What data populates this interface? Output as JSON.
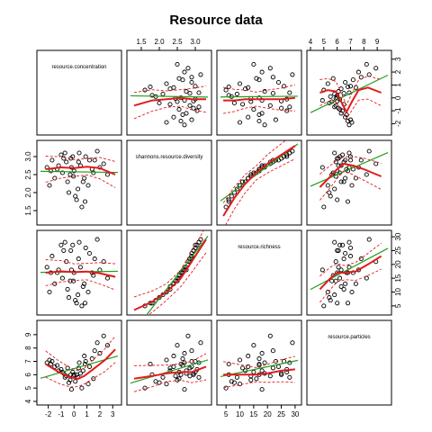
{
  "chart_data": {
    "type": "scatter",
    "title": "Resource data",
    "variables": [
      "resource.concentration",
      "shannons.resource.diversity",
      "resource.richness",
      "resource.particles"
    ],
    "ranges": [
      [
        -2.6,
        3.4
      ],
      [
        1.2,
        3.35
      ],
      [
        3,
        31
      ],
      [
        4,
        9.8
      ]
    ],
    "ticks": [
      [
        -2,
        -1,
        0,
        1,
        2,
        3
      ],
      [
        1.5,
        2.0,
        2.5,
        3.0
      ],
      [
        5,
        10,
        15,
        20,
        25,
        30
      ],
      [
        4,
        5,
        6,
        7,
        8,
        9
      ]
    ],
    "tick_labels": [
      [
        "-2",
        "-1",
        "0",
        "1",
        "2",
        "3"
      ],
      [
        "1.5",
        "2.0",
        "2.5",
        "3.0"
      ],
      [
        "5",
        "10",
        "15",
        "20",
        "25",
        "30"
      ],
      [
        "4",
        "5",
        "6",
        "7",
        "8",
        "9"
      ]
    ],
    "top_axis_vars": [
      1,
      3
    ],
    "bottom_axis_vars": [
      0,
      2
    ],
    "left_axis_vars": [
      1,
      3
    ],
    "right_axis_vars": [
      0,
      2
    ],
    "points": [
      [
        -1.8,
        2.6,
        17,
        6.8
      ],
      [
        -0.5,
        2.3,
        11,
        6.5
      ],
      [
        0.9,
        3.0,
        26,
        7.0
      ],
      [
        0.2,
        1.8,
        6,
        6.0
      ],
      [
        -1.2,
        2.75,
        18,
        6.3
      ],
      [
        1.6,
        2.9,
        22,
        7.8
      ],
      [
        -0.3,
        2.5,
        14,
        5.6
      ],
      [
        0.4,
        3.1,
        28,
        6.9
      ],
      [
        -2.1,
        2.7,
        19,
        6.9
      ],
      [
        1.1,
        2.2,
        10,
        5.3
      ],
      [
        -0.8,
        2.95,
        25,
        6.1
      ],
      [
        0.0,
        2.6,
        17,
        6.0
      ],
      [
        2.3,
        2.8,
        21,
        8.9
      ],
      [
        -1.5,
        2.4,
        13,
        6.6
      ],
      [
        0.6,
        1.6,
        5,
        5.0
      ],
      [
        -0.1,
        3.0,
        27,
        6.2
      ],
      [
        1.4,
        2.65,
        17,
        7.2
      ],
      [
        -0.6,
        2.85,
        21,
        5.9
      ],
      [
        0.3,
        2.1,
        9,
        5.8
      ],
      [
        -1.0,
        3.05,
        27,
        6.4
      ],
      [
        2.6,
        2.5,
        15,
        8.2
      ],
      [
        -0.2,
        2.7,
        18,
        4.9
      ],
      [
        0.8,
        2.4,
        13,
        7.4
      ],
      [
        -1.7,
        2.9,
        23,
        7.0
      ],
      [
        0.1,
        1.9,
        7,
        5.5
      ],
      [
        1.8,
        3.15,
        29,
        8.4
      ],
      [
        -0.9,
        2.55,
        15,
        6.2
      ],
      [
        0.5,
        2.75,
        19,
        6.1
      ],
      [
        -0.4,
        2.0,
        8,
        5.4
      ],
      [
        1.2,
        2.9,
        24,
        6.6
      ],
      [
        -1.3,
        2.65,
        17,
        6.7
      ],
      [
        0.7,
        2.3,
        12,
        6.3
      ],
      [
        -0.7,
        3.1,
        28,
        5.8
      ],
      [
        2.0,
        2.7,
        18,
        7.6
      ],
      [
        -0.05,
        2.45,
        14,
        5.9
      ],
      [
        0.35,
        2.85,
        22,
        6.5
      ],
      [
        -1.9,
        2.2,
        10,
        7.1
      ],
      [
        1.5,
        2.55,
        16,
        5.7
      ],
      [
        -0.25,
        2.95,
        25,
        6.0
      ],
      [
        0.85,
        1.75,
        6,
        6.8
      ]
    ],
    "smooth": {
      "0": {
        "1": [
          [
            -2.2,
            2.65
          ],
          [
            -1.0,
            2.7
          ],
          [
            0.0,
            2.68
          ],
          [
            1.0,
            2.72
          ],
          [
            2.0,
            2.68
          ],
          [
            3.2,
            2.5
          ]
        ],
        "2": [
          [
            -2.2,
            17
          ],
          [
            -1.0,
            17.5
          ],
          [
            0.0,
            17.2
          ],
          [
            1.0,
            17.4
          ],
          [
            2.0,
            16.8
          ],
          [
            3.2,
            15.5
          ]
        ],
        "3": [
          [
            -2.2,
            6.8
          ],
          [
            -1.2,
            6.2
          ],
          [
            -0.3,
            5.8
          ],
          [
            0.3,
            5.7
          ],
          [
            0.8,
            5.9
          ],
          [
            1.6,
            6.5
          ],
          [
            2.4,
            7.1
          ],
          [
            3.2,
            7.9
          ]
        ]
      },
      "1": {
        "0": [
          [
            1.3,
            -0.6
          ],
          [
            1.8,
            -0.2
          ],
          [
            2.2,
            -0.1
          ],
          [
            2.6,
            0.0
          ],
          [
            2.9,
            -0.1
          ],
          [
            3.3,
            -0.1
          ]
        ],
        "2": [
          [
            1.3,
            3.5
          ],
          [
            1.8,
            6.5
          ],
          [
            2.2,
            10
          ],
          [
            2.6,
            15
          ],
          [
            2.9,
            21
          ],
          [
            3.3,
            29
          ]
        ],
        "3": [
          [
            1.3,
            5.7
          ],
          [
            1.8,
            5.9
          ],
          [
            2.2,
            6.1
          ],
          [
            2.6,
            6.2
          ],
          [
            2.9,
            6.2
          ],
          [
            3.3,
            6.6
          ]
        ]
      },
      "2": {
        "0": [
          [
            4,
            -0.2
          ],
          [
            8,
            -0.2
          ],
          [
            12,
            -0.1
          ],
          [
            16,
            -0.1
          ],
          [
            20,
            -0.1
          ],
          [
            25,
            -0.1
          ],
          [
            30,
            0.0
          ]
        ],
        "1": [
          [
            4,
            1.35
          ],
          [
            8,
            1.85
          ],
          [
            12,
            2.25
          ],
          [
            16,
            2.55
          ],
          [
            20,
            2.8
          ],
          [
            25,
            3.05
          ],
          [
            30,
            3.3
          ]
        ],
        "3": [
          [
            4,
            6.0
          ],
          [
            8,
            6.0
          ],
          [
            12,
            6.0
          ],
          [
            16,
            6.0
          ],
          [
            20,
            6.1
          ],
          [
            25,
            6.3
          ],
          [
            30,
            6.4
          ]
        ]
      },
      "3": {
        "0": [
          [
            4.7,
            0.4
          ],
          [
            5.3,
            0.6
          ],
          [
            5.9,
            0.5
          ],
          [
            6.3,
            -0.3
          ],
          [
            6.7,
            -1.1
          ],
          [
            7.1,
            -0.3
          ],
          [
            7.6,
            0.6
          ],
          [
            8.3,
            0.8
          ],
          [
            9.3,
            0.4
          ]
        ],
        "1": [
          [
            4.7,
            2.15
          ],
          [
            5.5,
            2.45
          ],
          [
            6.0,
            2.65
          ],
          [
            6.5,
            2.8
          ],
          [
            7.2,
            2.75
          ],
          [
            8.0,
            2.65
          ],
          [
            9.3,
            2.45
          ]
        ],
        "2": [
          [
            4.7,
            11
          ],
          [
            5.5,
            15
          ],
          [
            6.0,
            17
          ],
          [
            6.6,
            17
          ],
          [
            7.4,
            17.5
          ],
          [
            8.3,
            20
          ],
          [
            9.3,
            23
          ]
        ]
      }
    },
    "colors": {
      "points": "#000000",
      "smooth": "#e31a1c",
      "spread": "#e31a1c",
      "linear_fit": "#1fa01f",
      "frame": "#000000"
    }
  }
}
